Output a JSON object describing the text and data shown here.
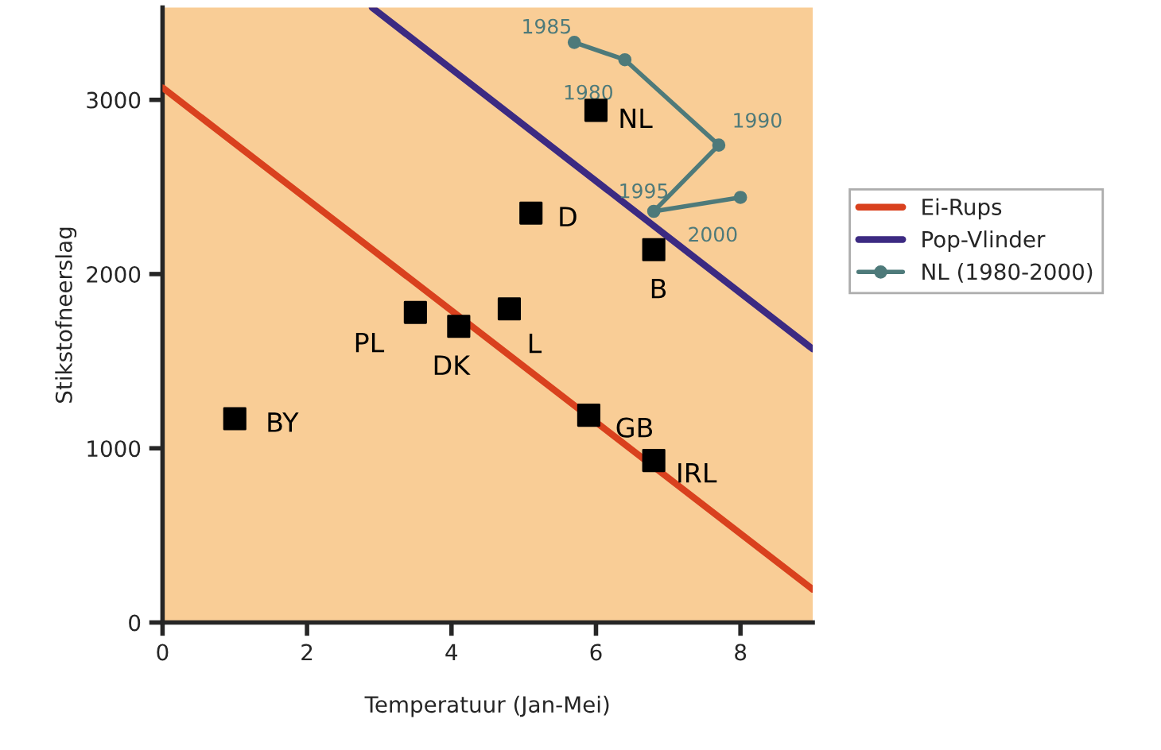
{
  "chart_data": {
    "type": "scatter",
    "xlabel": "Temperatuur (Jan-Mei)",
    "ylabel": "Stikstofneerslag",
    "xlim": [
      0,
      9
    ],
    "ylim": [
      0,
      3530
    ],
    "xticks": [
      0,
      2,
      4,
      6,
      8
    ],
    "yticks": [
      0,
      1000,
      2000,
      3000
    ],
    "grid": false,
    "legend": "right",
    "series": [
      {
        "color": "#000000",
        "marker": "square",
        "x": [
          1.0,
          3.5,
          4.1,
          4.8,
          5.1,
          6.0,
          6.8,
          5.9,
          6.8
        ],
        "values": [
          1170,
          1780,
          1700,
          1800,
          2350,
          2940,
          2140,
          1190,
          930
        ]
      },
      {
        "type": "line",
        "name": "Ei-Rups",
        "color": "#d9411e",
        "x": [
          0,
          9
        ],
        "values": [
          3070,
          190
        ]
      },
      {
        "type": "line",
        "name": "Pop-Vlinder",
        "color": "#3c2a82",
        "x": [
          2.9,
          9
        ],
        "values": [
          3530,
          1570
        ]
      },
      {
        "type": "line",
        "name": "NL (1980-2000)",
        "color": "#4e7a7a",
        "marker": "circle",
        "x": [
          5.7,
          6.4,
          7.7,
          6.8,
          8.0
        ],
        "values": [
          3330,
          3230,
          2740,
          2360,
          2440
        ]
      }
    ],
    "annotations": [
      {
        "text": "BY",
        "x": 1.0,
        "y": 1170
      },
      {
        "text": "PL",
        "x": 3.5,
        "y": 1780
      },
      {
        "text": "DK",
        "x": 4.1,
        "y": 1700
      },
      {
        "text": "L",
        "x": 4.8,
        "y": 1800
      },
      {
        "text": "D",
        "x": 5.1,
        "y": 2350
      },
      {
        "text": "NL",
        "x": 6.0,
        "y": 2940
      },
      {
        "text": "B",
        "x": 6.8,
        "y": 2140
      },
      {
        "text": "GB",
        "x": 5.9,
        "y": 1190
      },
      {
        "text": "IRL",
        "x": 6.8,
        "y": 930
      },
      {
        "text": "1985",
        "x": 5.7,
        "y": 3330
      },
      {
        "text": "1980",
        "x": 6.4,
        "y": 3230
      },
      {
        "text": "1990",
        "x": 7.7,
        "y": 2740
      },
      {
        "text": "1995",
        "x": 6.8,
        "y": 2360
      },
      {
        "text": "2000",
        "x": 8.0,
        "y": 2440
      }
    ]
  }
}
